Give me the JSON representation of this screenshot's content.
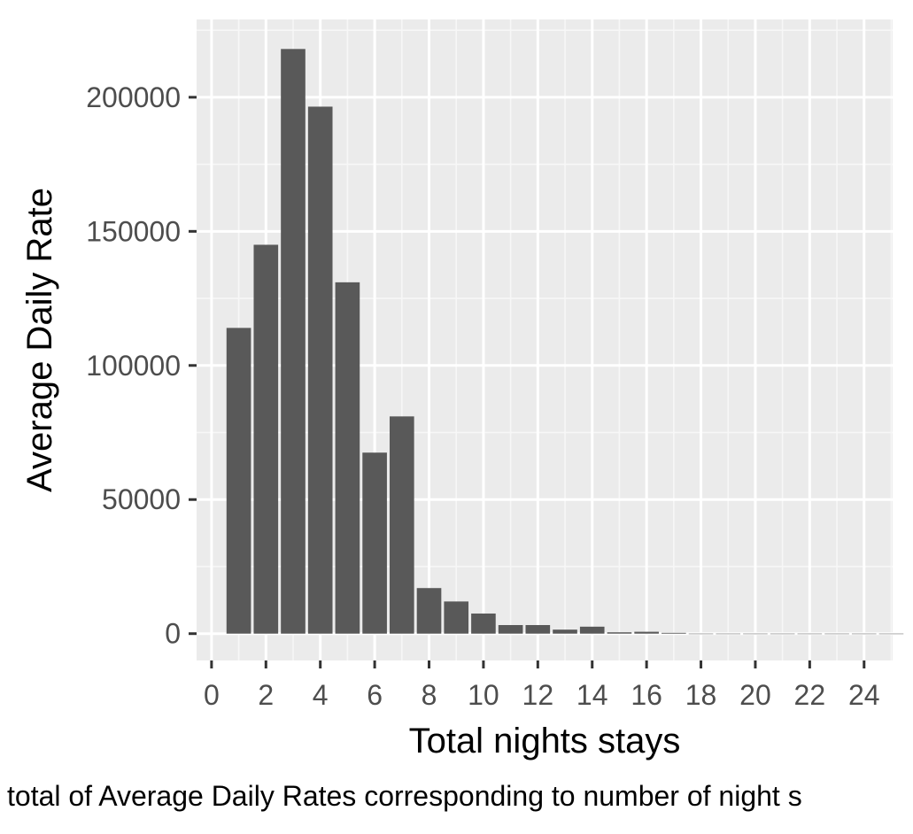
{
  "chart_data": {
    "type": "bar",
    "x": [
      1,
      2,
      3,
      4,
      5,
      6,
      7,
      8,
      9,
      10,
      11,
      12,
      13,
      14,
      15,
      16,
      17,
      18,
      19,
      20,
      21,
      22,
      23,
      24,
      25
    ],
    "values": [
      114000,
      145000,
      218000,
      196500,
      131000,
      67500,
      81000,
      17000,
      12000,
      7500,
      3200,
      3200,
      1500,
      2600,
      500,
      700,
      300,
      0,
      0,
      0,
      0,
      0,
      0,
      0,
      0
    ],
    "xlabel": "Total nights stays",
    "ylabel": "Average Daily Rate",
    "caption": "total of Average Daily Rates corresponding to number of night s",
    "xlim": [
      -0.55,
      25.05
    ],
    "ylim": [
      -10000,
      229000
    ],
    "x_ticks": [
      0,
      2,
      4,
      6,
      8,
      10,
      12,
      14,
      16,
      18,
      20,
      22,
      24
    ],
    "x_tick_labels": [
      "0",
      "2",
      "4",
      "6",
      "8",
      "10",
      "12",
      "14",
      "16",
      "18",
      "20",
      "22",
      "24"
    ],
    "y_ticks": [
      0,
      50000,
      100000,
      150000,
      200000
    ],
    "y_tick_labels": [
      "0",
      "50000",
      "100000",
      "150000",
      "200000"
    ],
    "grid": true,
    "colors": {
      "panel_background": "#ebebeb",
      "grid_major": "#ffffff",
      "grid_minor": "#f7f7f7",
      "bar_fill": "#595959",
      "tick_color": "#333333",
      "tick_label_color": "#4d4d4d",
      "text_color": "#000000"
    }
  }
}
